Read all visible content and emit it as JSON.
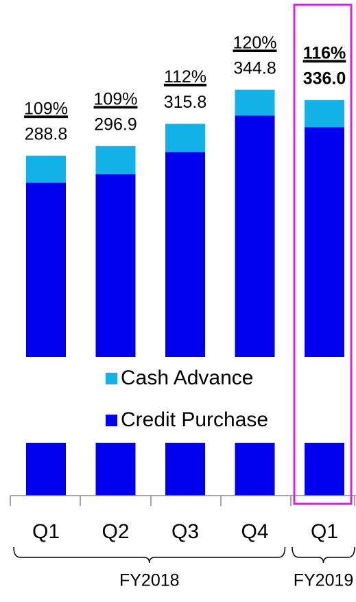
{
  "chart_data": {
    "type": "stacked_bar",
    "categories": [
      "Q1",
      "Q2",
      "Q3",
      "Q4",
      "Q1"
    ],
    "groups": [
      {
        "label": "FY2018",
        "span": [
          0,
          3
        ]
      },
      {
        "label": "FY2019",
        "span": [
          4,
          4
        ]
      }
    ],
    "series": [
      {
        "name": "Credit Purchase",
        "color": "#0000ee",
        "values": [
          265.8,
          272.9,
          291.8,
          322.8,
          313.0
        ]
      },
      {
        "name": "Cash Advance",
        "color": "#12b2e8",
        "values": [
          23,
          24,
          24,
          22,
          23
        ]
      }
    ],
    "totals": [
      288.8,
      296.9,
      315.8,
      344.8,
      336.0
    ],
    "total_labels": [
      "288.8",
      "296.9",
      "315.8",
      "344.8",
      "336.0"
    ],
    "percent_labels": [
      "109%",
      "109%",
      "112%",
      "120%",
      "116%"
    ],
    "highlight_index": 4,
    "ylim": [
      0,
      400
    ]
  }
}
